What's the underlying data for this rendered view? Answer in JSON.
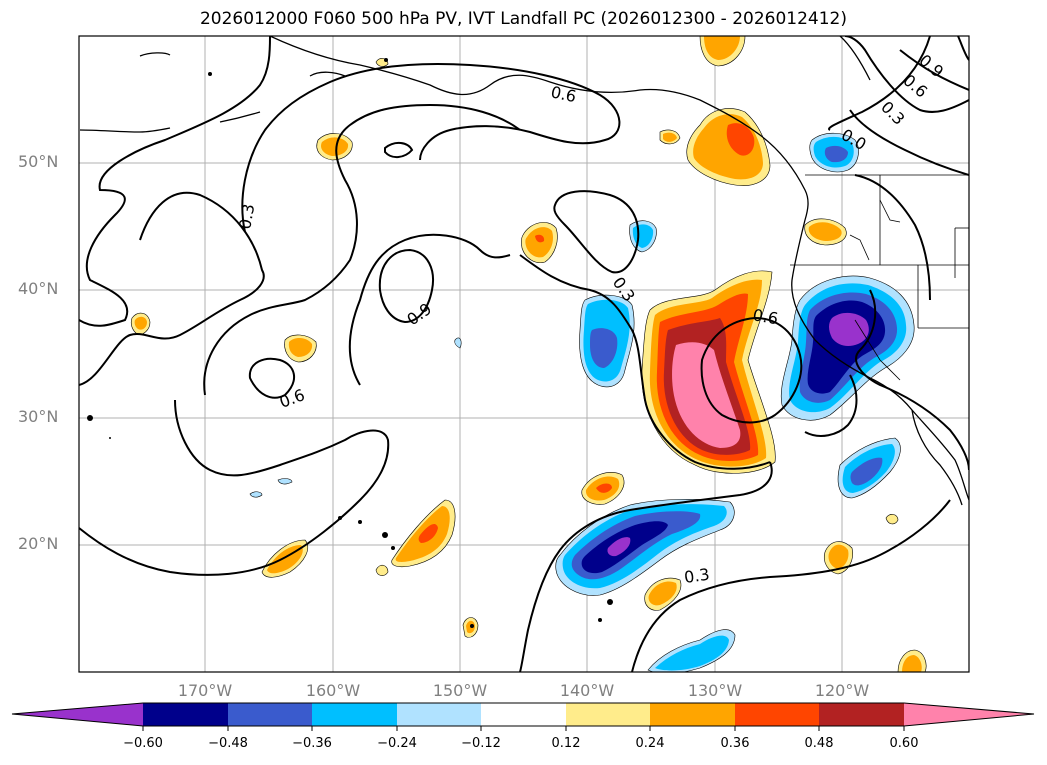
{
  "title": "2026012000 F060 500 hPa PV, IVT Landfall PC (2026012300 - 2026012412)",
  "lat_labels": [
    "50°N",
    "40°N",
    "30°N",
    "20°N"
  ],
  "lon_labels": [
    "170°W",
    "160°W",
    "150°W",
    "140°W",
    "130°W",
    "120°W"
  ],
  "contour_labels": [
    "0.6",
    "0.3",
    "0.9",
    "0.6",
    "0.3",
    "0.6",
    "0.9",
    "0.3",
    "0.6",
    "0.3",
    "0.0"
  ],
  "colorbar": {
    "tick_labels": [
      "−0.60",
      "−0.48",
      "−0.36",
      "−0.24",
      "−0.12",
      "0.12",
      "0.24",
      "0.36",
      "0.48",
      "0.60"
    ],
    "colors": [
      "#9932cc",
      "#00008b",
      "#3a5bcd",
      "#00bfff",
      "#b0e2ff",
      "#ffffff",
      "#ffec8b",
      "#ffa500",
      "#ff4500",
      "#b22222",
      "#ff82ab"
    ]
  }
}
